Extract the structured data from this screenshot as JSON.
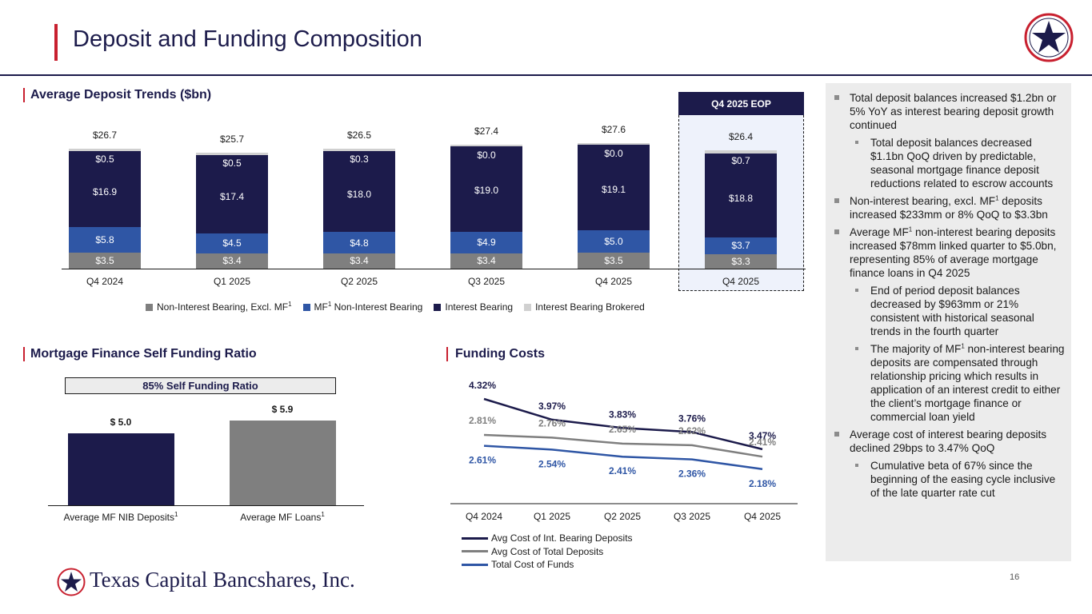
{
  "header": {
    "title": "Deposit and Funding Composition",
    "logo_icon": "star-seal-icon"
  },
  "deposit_section": {
    "title": "Average Deposit Trends ($bn)",
    "eop_label": "Q4 2025 EOP"
  },
  "self_funding_section": {
    "title": "Mortgage Finance Self Funding Ratio",
    "banner": "85% Self Funding Ratio"
  },
  "funding_costs_section": {
    "title": "Funding Costs"
  },
  "sidebar": {
    "bullets": [
      {
        "text": "Total deposit balances increased $1.2bn or 5% YoY as interest bearing deposit growth continued",
        "sub": [
          "Total deposit balances decreased $1.1bn QoQ driven by predictable, seasonal mortgage finance deposit reductions related to escrow accounts"
        ]
      },
      {
        "text_a": "Non-interest bearing, excl. MF",
        "sup": "1",
        "text_b": " deposits increased $233mm or 8% QoQ to $3.3bn"
      },
      {
        "text_a": "Average MF",
        "sup": "1",
        "text_b": " non-interest bearing deposits increased $78mm linked quarter to $5.0bn, representing 85% of average mortgage finance loans in Q4 2025",
        "sub": [
          "End of period deposit balances decreased by $963mm or 21% consistent with historical seasonal trends in the fourth quarter"
        ],
        "sub2_a": "The majority of MF",
        "sub2_sup": "1",
        "sub2_b": " non-interest bearing deposits are compensated through relationship pricing which results in application of an interest credit to either the client’s mortgage finance or commercial loan yield"
      },
      {
        "text": "Average cost of interest bearing deposits declined 29bps to 3.47% QoQ",
        "sub": [
          "Cumulative beta of 67% since the beginning of the easing cycle inclusive of the late quarter rate cut"
        ]
      }
    ]
  },
  "footer": {
    "company": "Texas Capital Bancshares, Inc.",
    "page_number": "16"
  },
  "colors": {
    "navy": "#1c1b4b",
    "blue": "#2f56a5",
    "gray": "#7f7f7f",
    "light_gray": "#d0d0d0",
    "red": "#c8202f"
  },
  "chart_data": [
    {
      "type": "bar",
      "stacked": true,
      "title": "Average Deposit Trends ($bn)",
      "categories": [
        "Q4 2024",
        "Q1 2025",
        "Q2 2025",
        "Q3 2025",
        "Q4 2025",
        "Q4 2025"
      ],
      "series": [
        {
          "name": "Non-Interest Bearing, Excl. MF",
          "name_sup": "1",
          "color": "#7f7f7f",
          "values": [
            3.5,
            3.4,
            3.4,
            3.4,
            3.5,
            3.3
          ],
          "labels": [
            "$3.5",
            "$3.4",
            "$3.4",
            "$3.4",
            "$3.5",
            "$3.3"
          ]
        },
        {
          "name": "MF",
          "name_sup": "1",
          "name_suffix": " Non-Interest Bearing",
          "color": "#2f56a5",
          "values": [
            5.8,
            4.5,
            4.8,
            4.9,
            5.0,
            3.7
          ],
          "labels": [
            "$5.8",
            "$4.5",
            "$4.8",
            "$4.9",
            "$5.0",
            "$3.7"
          ]
        },
        {
          "name": "Interest Bearing",
          "color": "#1c1b4b",
          "values": [
            16.9,
            17.4,
            18.0,
            19.0,
            19.1,
            18.8
          ],
          "labels": [
            "$16.9",
            "$17.4",
            "$18.0",
            "$19.0",
            "$19.1",
            "$18.8"
          ]
        },
        {
          "name": "Interest Bearing Brokered",
          "color": "#d0d0d0",
          "values": [
            0.5,
            0.5,
            0.3,
            0.0,
            0.0,
            0.7
          ],
          "labels": [
            "$0.5",
            "$0.5",
            "$0.3",
            "$0.0",
            "$0.0",
            "$0.7"
          ]
        }
      ],
      "totals": [
        "$26.7",
        "$25.7",
        "$26.5",
        "$27.4",
        "$27.6",
        "$26.4"
      ],
      "highlight_index": 5
    },
    {
      "type": "bar",
      "title": "Mortgage Finance Self Funding Ratio",
      "categories": [
        "Average MF NIB Deposits",
        "Average MF Loans"
      ],
      "category_sup": "1",
      "values": [
        5.0,
        5.9
      ],
      "labels": [
        "$ 5.0",
        "$ 5.9"
      ],
      "colors": [
        "#1c1b4b",
        "#7f7f7f"
      ]
    },
    {
      "type": "line",
      "title": "Funding Costs",
      "categories": [
        "Q4 2024",
        "Q1 2025",
        "Q2 2025",
        "Q3 2025",
        "Q4 2025"
      ],
      "series": [
        {
          "name": "Avg Cost of Int. Bearing Deposits",
          "color": "#1c1b4b",
          "values": [
            4.32,
            3.97,
            3.83,
            3.76,
            3.47
          ],
          "labels": [
            "4.32%",
            "3.97%",
            "3.83%",
            "3.76%",
            "3.47%"
          ]
        },
        {
          "name": "Avg Cost of Total Deposits",
          "color": "#7f7f7f",
          "values": [
            2.81,
            2.76,
            2.65,
            2.62,
            2.41
          ],
          "labels": [
            "2.81%",
            "2.76%",
            "2.65%",
            "2.62%",
            "2.41%"
          ]
        },
        {
          "name": "Total Cost of Funds",
          "color": "#2f56a5",
          "values": [
            2.61,
            2.54,
            2.41,
            2.36,
            2.18
          ],
          "labels": [
            "2.61%",
            "2.54%",
            "2.41%",
            "2.36%",
            "2.18%"
          ]
        }
      ]
    }
  ]
}
